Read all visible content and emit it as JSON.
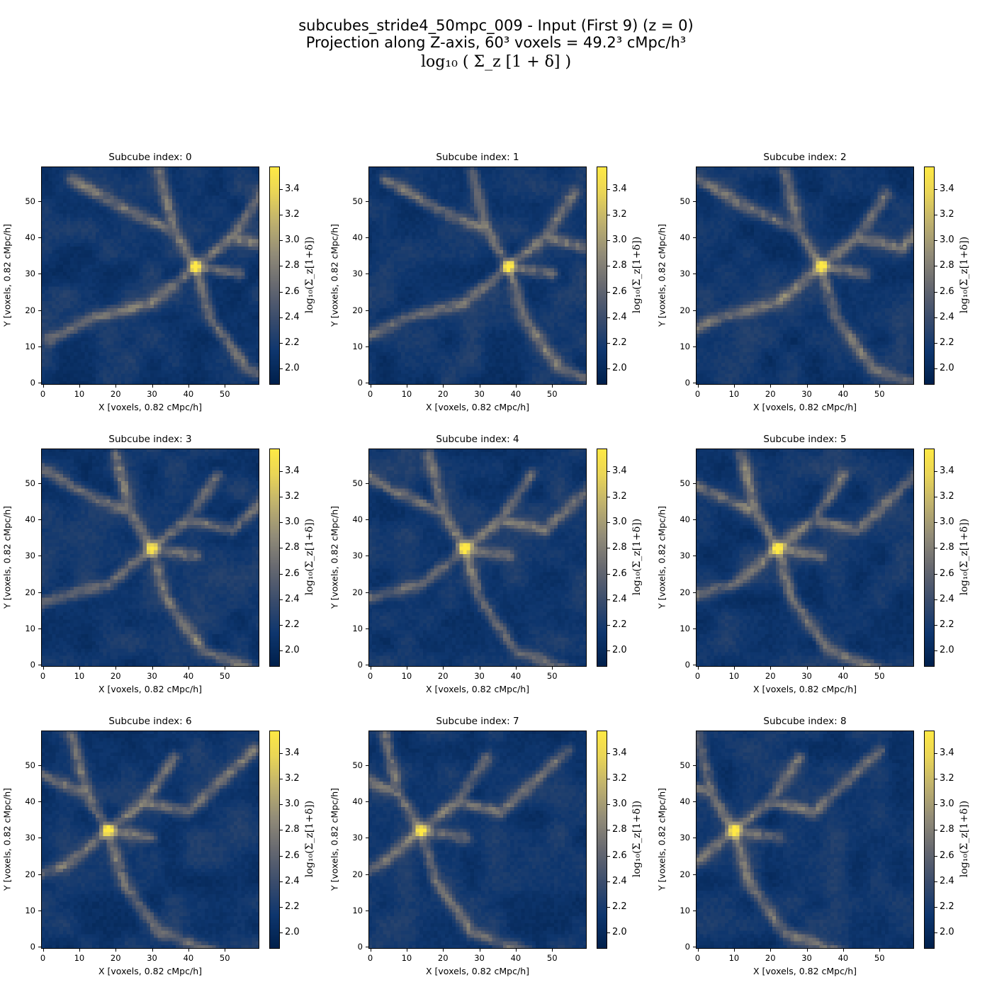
{
  "figure": {
    "title_line1": "subcubes_stride4_50mpc_009 - Input (First 9) (z = 0)",
    "title_line2": "Projection along Z-axis, 60³ voxels = 49.2³ cMpc/h³",
    "title_math": "log₁₀ ( Σ_z [1 + δ] )"
  },
  "chart_data": {
    "type": "heatmap",
    "grid": "off",
    "colormap": "cividis",
    "colors": {
      "low": "#00204c",
      "mid": "#7c7b78",
      "high": "#ffe945"
    },
    "panels": [
      {
        "title": "Subcube index: 0",
        "peak_x": 42,
        "peak_y": 32
      },
      {
        "title": "Subcube index: 1",
        "peak_x": 38,
        "peak_y": 32
      },
      {
        "title": "Subcube index: 2",
        "peak_x": 34,
        "peak_y": 32
      },
      {
        "title": "Subcube index: 3",
        "peak_x": 30,
        "peak_y": 32
      },
      {
        "title": "Subcube index: 4",
        "peak_x": 26,
        "peak_y": 32
      },
      {
        "title": "Subcube index: 5",
        "peak_x": 22,
        "peak_y": 32
      },
      {
        "title": "Subcube index: 6",
        "peak_x": 18,
        "peak_y": 32
      },
      {
        "title": "Subcube index: 7",
        "peak_x": 14,
        "peak_y": 32
      },
      {
        "title": "Subcube index: 8",
        "peak_x": 10,
        "peak_y": 32
      }
    ],
    "xlabel": "X [voxels, 0.82 cMpc/h]",
    "ylabel": "Y [voxels, 0.82 cMpc/h]",
    "xlim": [
      0,
      60
    ],
    "ylim": [
      0,
      60
    ],
    "xticks": [
      "0",
      "10",
      "20",
      "30",
      "40",
      "50"
    ],
    "yticks": [
      "0",
      "10",
      "20",
      "30",
      "40",
      "50"
    ],
    "colorbar": {
      "label": "log₁₀(Σ_z[1+δ])",
      "range": [
        1.87,
        3.58
      ],
      "ticks": [
        "2.0",
        "2.2",
        "2.4",
        "2.6",
        "2.8",
        "3.0",
        "3.2",
        "3.4"
      ]
    }
  }
}
